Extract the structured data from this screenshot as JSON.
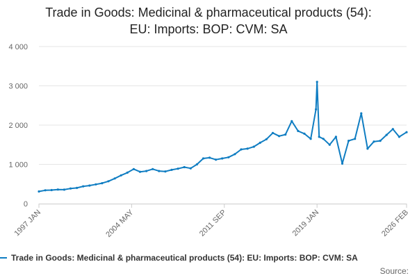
{
  "chart_data": {
    "type": "line",
    "title": "Trade in Goods: Medicinal & pharmaceutical products (54): EU: Imports: BOP: CVM: SA",
    "title_lines": [
      "Trade in Goods: Medicinal & pharmaceutical products (54):",
      "EU: Imports: BOP: CVM: SA"
    ],
    "xlabel": "",
    "ylabel": "",
    "ylim": [
      0,
      4000
    ],
    "yticks": [
      0,
      1000,
      2000,
      3000,
      4000
    ],
    "ytick_labels": [
      "0",
      "1 000",
      "2 000",
      "3 000",
      "4 000"
    ],
    "xlim": [
      "1997-01",
      "2026-02"
    ],
    "xticks": [
      "1997-01",
      "2004-05",
      "2011-09",
      "2019-01",
      "2026-02"
    ],
    "xtick_labels": [
      "1997 JAN",
      "2004 MAY",
      "2011 SEP",
      "2019 JAN",
      "2026 FEB"
    ],
    "grid": "horizontal",
    "legend_position": "bottom",
    "series": [
      {
        "name": "Trade in Goods: Medicinal & pharmaceutical products (54): EU: Imports: BOP: CVM: SA",
        "color": "#0F7DC2",
        "points": [
          [
            "1997-01",
            310
          ],
          [
            "1997-07",
            340
          ],
          [
            "1998-01",
            345
          ],
          [
            "1998-07",
            360
          ],
          [
            "1999-01",
            355
          ],
          [
            "1999-07",
            385
          ],
          [
            "2000-01",
            400
          ],
          [
            "2000-07",
            440
          ],
          [
            "2001-01",
            460
          ],
          [
            "2001-07",
            490
          ],
          [
            "2002-01",
            520
          ],
          [
            "2002-07",
            570
          ],
          [
            "2003-01",
            640
          ],
          [
            "2003-07",
            720
          ],
          [
            "2004-01",
            790
          ],
          [
            "2004-07",
            880
          ],
          [
            "2005-01",
            810
          ],
          [
            "2005-07",
            830
          ],
          [
            "2006-01",
            880
          ],
          [
            "2006-07",
            830
          ],
          [
            "2007-01",
            820
          ],
          [
            "2007-07",
            860
          ],
          [
            "2008-01",
            890
          ],
          [
            "2008-07",
            930
          ],
          [
            "2009-01",
            900
          ],
          [
            "2009-07",
            1000
          ],
          [
            "2010-01",
            1150
          ],
          [
            "2010-07",
            1170
          ],
          [
            "2011-01",
            1120
          ],
          [
            "2011-07",
            1150
          ],
          [
            "2012-01",
            1180
          ],
          [
            "2012-07",
            1260
          ],
          [
            "2013-01",
            1380
          ],
          [
            "2013-07",
            1400
          ],
          [
            "2014-01",
            1450
          ],
          [
            "2014-07",
            1550
          ],
          [
            "2015-01",
            1640
          ],
          [
            "2015-07",
            1800
          ],
          [
            "2016-01",
            1720
          ],
          [
            "2016-07",
            1760
          ],
          [
            "2017-01",
            2100
          ],
          [
            "2017-07",
            1850
          ],
          [
            "2018-01",
            1780
          ],
          [
            "2018-07",
            1650
          ],
          [
            "2018-12",
            2400
          ],
          [
            "2019-01",
            3100
          ],
          [
            "2019-03",
            1700
          ],
          [
            "2019-07",
            1650
          ],
          [
            "2020-01",
            1500
          ],
          [
            "2020-07",
            1700
          ],
          [
            "2021-01",
            1020
          ],
          [
            "2021-07",
            1600
          ],
          [
            "2022-01",
            1650
          ],
          [
            "2022-07",
            2300
          ],
          [
            "2023-01",
            1400
          ],
          [
            "2023-07",
            1580
          ],
          [
            "2024-01",
            1600
          ],
          [
            "2024-07",
            1750
          ],
          [
            "2025-01",
            1900
          ],
          [
            "2025-07",
            1700
          ],
          [
            "2026-02",
            1820
          ]
        ]
      }
    ]
  },
  "source": "Source:"
}
